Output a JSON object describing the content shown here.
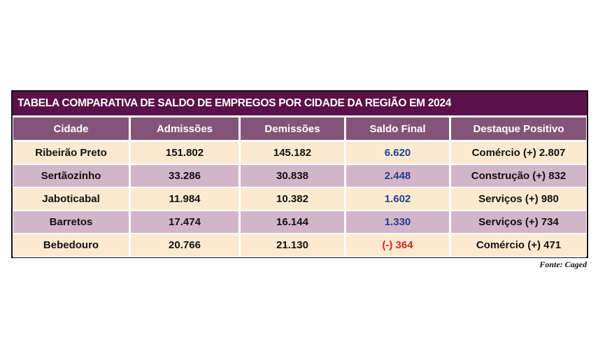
{
  "title": "TABELA COMPARATIVA DE SALDO DE EMPREGOS POR CIDADE DA REGIÃO EM 2024",
  "headers": [
    "Cidade",
    "Admissões",
    "Demissões",
    "Saldo Final",
    "Destaque Positivo"
  ],
  "rows": [
    {
      "cidade": "Ribeirão Preto",
      "admissoes": "151.802",
      "demissoes": "145.182",
      "saldo": "6.620",
      "destaque": "Comércio (+) 2.807"
    },
    {
      "cidade": "Sertãozinho",
      "admissoes": "33.286",
      "demissoes": "30.838",
      "saldo": "2.448",
      "destaque": "Construção (+) 832"
    },
    {
      "cidade": "Jaboticabal",
      "admissoes": "11.984",
      "demissoes": "10.382",
      "saldo": "1.602",
      "destaque": "Serviços (+) 980"
    },
    {
      "cidade": "Barretos",
      "admissoes": "17.474",
      "demissoes": "16.144",
      "saldo": "1.330",
      "destaque": "Serviços (+) 734"
    },
    {
      "cidade": "Bebedouro",
      "admissoes": "20.766",
      "demissoes": "21.130",
      "saldo": "(-) 364",
      "destaque": "Comércio (+) 471"
    }
  ],
  "source": "Fonte: Caged",
  "colors": {
    "title_bg": "#5a1149",
    "header_bg": "#845478",
    "row_light": "#fbead0",
    "row_dark": "#d3b5c9",
    "saldo_positive": "#1f3f8e",
    "saldo_negative": "#d9261c"
  }
}
